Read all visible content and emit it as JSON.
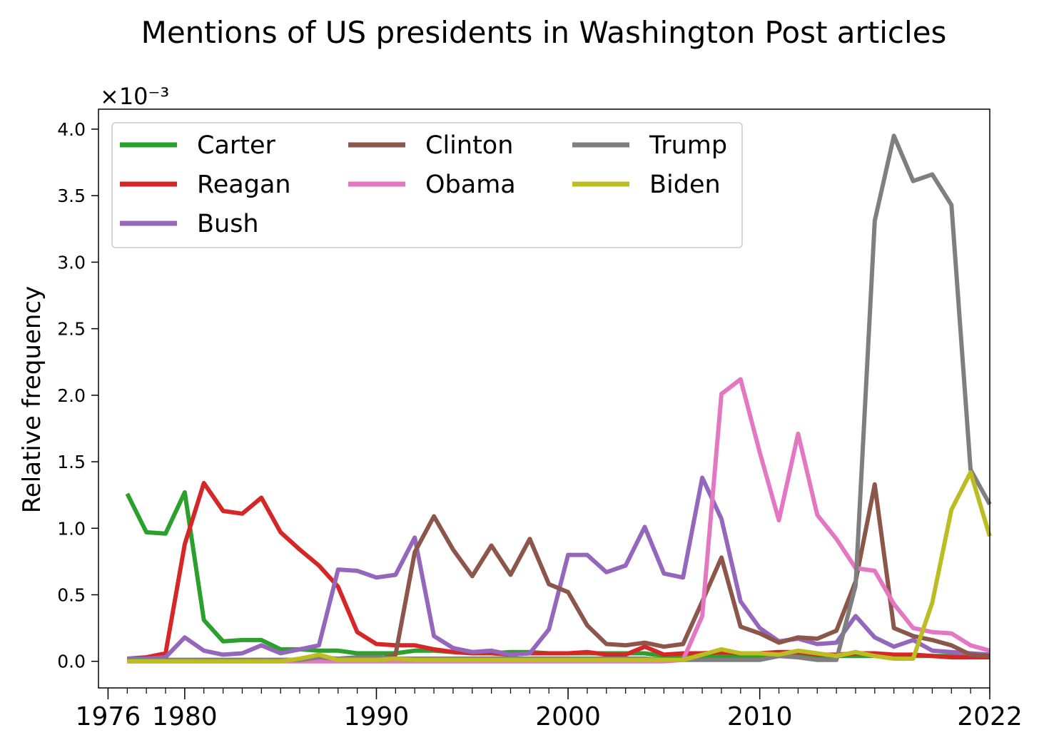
{
  "chart_data": {
    "type": "line",
    "title": "Mentions of US presidents in Washington Post articles",
    "xlabel": "",
    "ylabel": "Relative frequency",
    "y_multiplier": "×10⁻³",
    "xlim": [
      1975.5,
      2022
    ],
    "ylim": [
      -0.2,
      4.15
    ],
    "xticks_major": [
      "1976",
      "1980",
      "1990",
      "2000",
      "2010",
      "2022"
    ],
    "yticks": [
      "0.0",
      "0.5",
      "1.0",
      "1.5",
      "2.0",
      "2.5",
      "3.0",
      "3.5",
      "4.0"
    ],
    "legend_position": "upper-left",
    "x": [
      1977,
      1978,
      1979,
      1980,
      1981,
      1982,
      1983,
      1984,
      1985,
      1986,
      1987,
      1988,
      1989,
      1990,
      1991,
      1992,
      1993,
      1994,
      1995,
      1996,
      1997,
      1998,
      1999,
      2000,
      2001,
      2002,
      2003,
      2004,
      2005,
      2006,
      2007,
      2008,
      2009,
      2010,
      2011,
      2012,
      2013,
      2014,
      2015,
      2016,
      2017,
      2018,
      2019,
      2020,
      2021,
      2022
    ],
    "series": [
      {
        "name": "Carter",
        "color": "#2ca02c",
        "values": [
          1.26,
          0.97,
          0.96,
          1.27,
          0.31,
          0.15,
          0.16,
          0.16,
          0.09,
          0.09,
          0.08,
          0.08,
          0.06,
          0.06,
          0.06,
          0.08,
          0.08,
          0.07,
          0.07,
          0.06,
          0.07,
          0.07,
          0.06,
          0.06,
          0.06,
          0.06,
          0.06,
          0.06,
          0.04,
          0.04,
          0.04,
          0.04,
          0.04,
          0.04,
          0.04,
          0.04,
          0.04,
          0.04,
          0.04,
          0.04,
          0.04,
          0.04,
          0.04,
          0.04,
          0.04,
          0.04
        ]
      },
      {
        "name": "Reagan",
        "color": "#d62728",
        "values": [
          0.02,
          0.03,
          0.06,
          0.88,
          1.34,
          1.13,
          1.11,
          1.23,
          0.97,
          0.84,
          0.72,
          0.56,
          0.22,
          0.13,
          0.12,
          0.12,
          0.09,
          0.07,
          0.06,
          0.06,
          0.05,
          0.06,
          0.06,
          0.06,
          0.07,
          0.05,
          0.05,
          0.11,
          0.05,
          0.06,
          0.06,
          0.07,
          0.06,
          0.06,
          0.07,
          0.07,
          0.05,
          0.05,
          0.06,
          0.06,
          0.05,
          0.05,
          0.04,
          0.03,
          0.03,
          0.03
        ]
      },
      {
        "name": "Bush",
        "color": "#9467bd",
        "values": [
          0.02,
          0.02,
          0.03,
          0.18,
          0.08,
          0.05,
          0.06,
          0.12,
          0.06,
          0.09,
          0.12,
          0.69,
          0.68,
          0.63,
          0.65,
          0.93,
          0.19,
          0.1,
          0.07,
          0.08,
          0.05,
          0.06,
          0.24,
          0.8,
          0.8,
          0.67,
          0.72,
          1.01,
          0.66,
          0.63,
          1.38,
          1.07,
          0.45,
          0.25,
          0.15,
          0.17,
          0.13,
          0.14,
          0.34,
          0.18,
          0.11,
          0.16,
          0.08,
          0.07,
          0.06,
          0.05
        ]
      },
      {
        "name": "Clinton",
        "color": "#8c564b",
        "values": [
          0.01,
          0.01,
          0.01,
          0.01,
          0.01,
          0.01,
          0.01,
          0.01,
          0.01,
          0.01,
          0.01,
          0.01,
          0.01,
          0.01,
          0.05,
          0.82,
          1.09,
          0.84,
          0.64,
          0.87,
          0.65,
          0.92,
          0.58,
          0.52,
          0.27,
          0.13,
          0.12,
          0.14,
          0.11,
          0.13,
          0.45,
          0.78,
          0.26,
          0.21,
          0.14,
          0.18,
          0.17,
          0.23,
          0.6,
          1.33,
          0.25,
          0.19,
          0.16,
          0.12,
          0.05,
          0.04
        ]
      },
      {
        "name": "Obama",
        "color": "#e377c2",
        "values": [
          0.0,
          0.0,
          0.0,
          0.0,
          0.0,
          0.0,
          0.0,
          0.0,
          0.0,
          0.0,
          0.0,
          0.0,
          0.0,
          0.0,
          0.0,
          0.0,
          0.0,
          0.0,
          0.0,
          0.0,
          0.0,
          0.0,
          0.0,
          0.0,
          0.0,
          0.0,
          0.0,
          0.0,
          0.0,
          0.01,
          0.34,
          2.01,
          2.12,
          1.57,
          1.06,
          1.71,
          1.1,
          0.92,
          0.7,
          0.68,
          0.43,
          0.25,
          0.22,
          0.21,
          0.12,
          0.08
        ]
      },
      {
        "name": "Trump",
        "color": "#7f7f7f",
        "values": [
          0.01,
          0.01,
          0.01,
          0.01,
          0.01,
          0.01,
          0.01,
          0.01,
          0.01,
          0.01,
          0.03,
          0.02,
          0.03,
          0.03,
          0.02,
          0.02,
          0.02,
          0.02,
          0.02,
          0.02,
          0.02,
          0.02,
          0.02,
          0.02,
          0.02,
          0.02,
          0.02,
          0.02,
          0.01,
          0.01,
          0.01,
          0.01,
          0.01,
          0.01,
          0.04,
          0.03,
          0.01,
          0.01,
          0.57,
          3.31,
          3.95,
          3.61,
          3.66,
          3.43,
          1.44,
          1.18
        ]
      },
      {
        "name": "Biden",
        "color": "#bcbd22",
        "values": [
          0.0,
          0.0,
          0.0,
          0.0,
          0.0,
          0.0,
          0.0,
          0.0,
          0.0,
          0.02,
          0.05,
          0.01,
          0.01,
          0.01,
          0.02,
          0.01,
          0.01,
          0.01,
          0.01,
          0.01,
          0.01,
          0.01,
          0.01,
          0.01,
          0.01,
          0.01,
          0.01,
          0.01,
          0.01,
          0.01,
          0.05,
          0.09,
          0.06,
          0.06,
          0.05,
          0.08,
          0.06,
          0.04,
          0.07,
          0.04,
          0.02,
          0.02,
          0.44,
          1.14,
          1.42,
          0.94
        ]
      }
    ]
  }
}
